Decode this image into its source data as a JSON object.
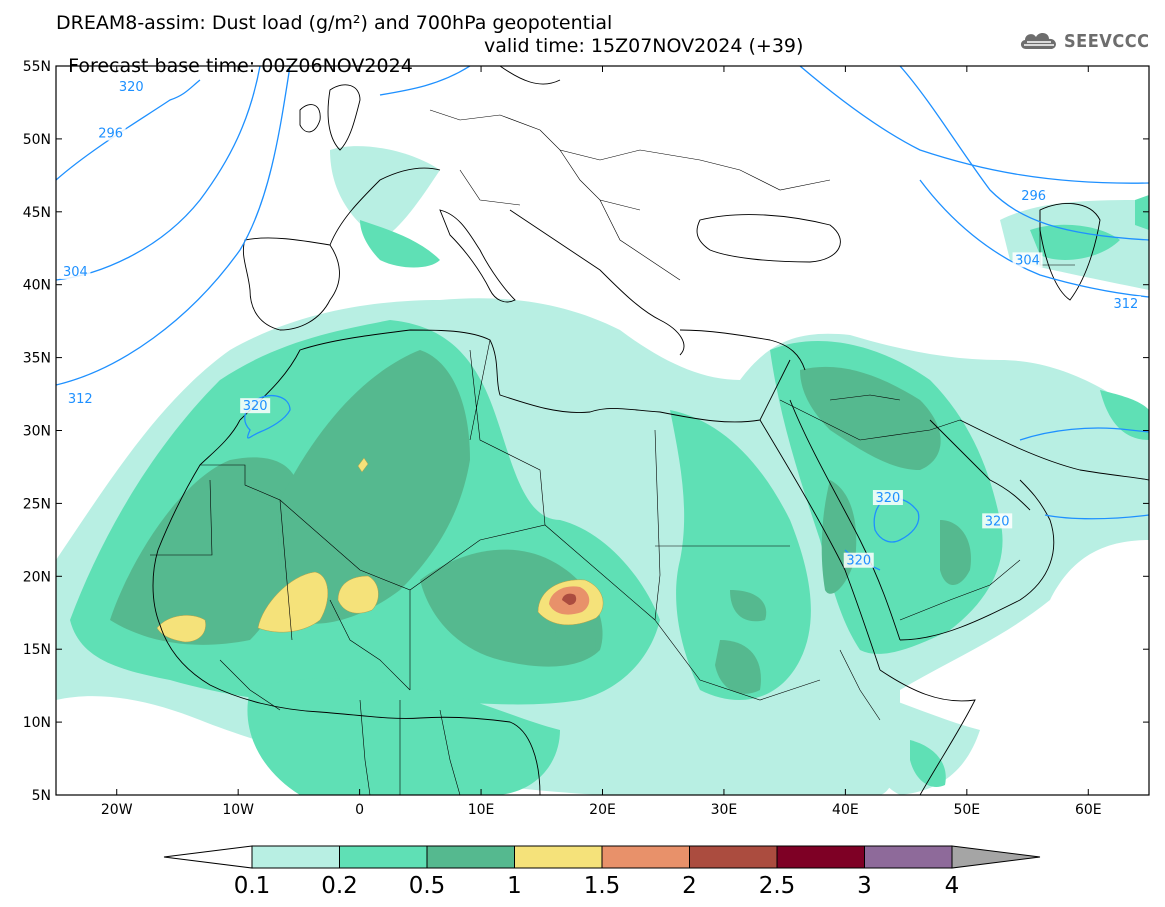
{
  "header": {
    "title_line1": "DREAM8-assim: Dust load (g/m²) and 700hPa geopotential",
    "title_line2_left": "Forecast base time: 00Z06NOV2024",
    "title_line2_right": "valid time: 15Z07NOV2024 (+39)"
  },
  "brand": {
    "name": "SEEVCCC",
    "icon": "cloud-logo-icon"
  },
  "map": {
    "lon_range": [
      -25,
      65
    ],
    "lat_range": [
      5,
      55
    ],
    "lat_ticks": [
      {
        "value": 55,
        "label": "55N"
      },
      {
        "value": 50,
        "label": "50N"
      },
      {
        "value": 45,
        "label": "45N"
      },
      {
        "value": 40,
        "label": "40N"
      },
      {
        "value": 35,
        "label": "35N"
      },
      {
        "value": 30,
        "label": "30N"
      },
      {
        "value": 25,
        "label": "25N"
      },
      {
        "value": 20,
        "label": "20N"
      },
      {
        "value": 15,
        "label": "15N"
      },
      {
        "value": 10,
        "label": "10N"
      },
      {
        "value": 5,
        "label": "5N"
      }
    ],
    "lon_ticks": [
      {
        "value": -20,
        "label": "20W"
      },
      {
        "value": -10,
        "label": "10W"
      },
      {
        "value": 0,
        "label": "0"
      },
      {
        "value": 10,
        "label": "10E"
      },
      {
        "value": 20,
        "label": "20E"
      },
      {
        "value": 30,
        "label": "30E"
      },
      {
        "value": 40,
        "label": "40E"
      },
      {
        "value": 50,
        "label": "50E"
      },
      {
        "value": 60,
        "label": "60E"
      }
    ],
    "contour_color": "#1e90ff",
    "contour_labels": [
      {
        "text": "296",
        "lon": -20.5,
        "lat": 50.3
      },
      {
        "text": "304",
        "lon": -23.4,
        "lat": 40.8
      },
      {
        "text": "312",
        "lon": -23.0,
        "lat": 32.1
      },
      {
        "text": "320",
        "lon": -18.8,
        "lat": 53.5
      },
      {
        "text": "320",
        "lon": -8.6,
        "lat": 31.6
      },
      {
        "text": "320",
        "lon": 43.5,
        "lat": 25.3
      },
      {
        "text": "320",
        "lon": 41.1,
        "lat": 21.0
      },
      {
        "text": "320",
        "lon": 52.5,
        "lat": 23.7
      },
      {
        "text": "296",
        "lon": 55.5,
        "lat": 46.0
      },
      {
        "text": "304",
        "lon": 55.0,
        "lat": 41.6
      },
      {
        "text": "312",
        "lon": 63.1,
        "lat": 38.6
      }
    ]
  },
  "legend": {
    "labels": [
      "0.1",
      "0.2",
      "0.5",
      "1",
      "1.5",
      "2",
      "2.5",
      "3",
      "4"
    ],
    "colors": [
      "#ffffff",
      "#b8efe3",
      "#5fe0b5",
      "#55b98f",
      "#f5e27a",
      "#e8916a",
      "#ab4c3f",
      "#7e0025",
      "#8e6a9a",
      "#a5a5a5"
    ]
  }
}
